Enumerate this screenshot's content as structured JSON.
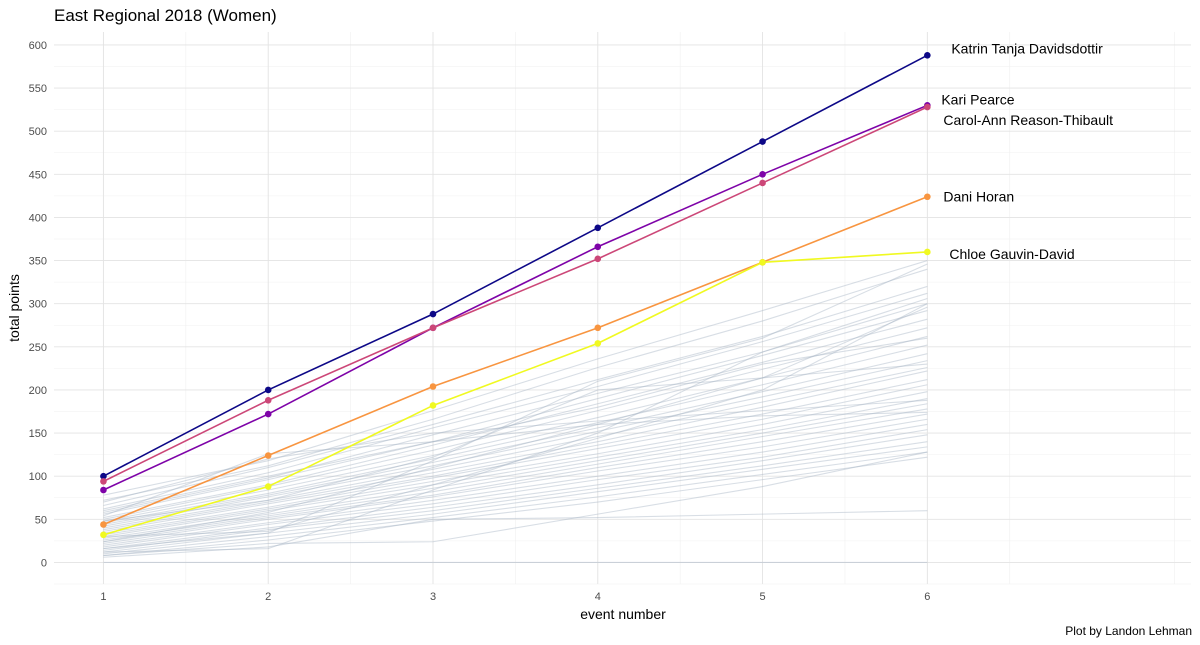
{
  "chart_data": {
    "type": "line",
    "title": "East Regional 2018 (Women)",
    "xlabel": "event number",
    "ylabel": "total points",
    "caption": "Plot by Landon Lehman",
    "x": [
      1,
      2,
      3,
      4,
      5,
      6
    ],
    "xlim": [
      0.7,
      7.6
    ],
    "ylim": [
      -25,
      615
    ],
    "yticks": [
      0,
      50,
      100,
      150,
      200,
      250,
      300,
      350,
      400,
      450,
      500,
      550,
      600
    ],
    "grid": true,
    "highlighted_series": [
      {
        "name": "Katrin Tanja Davidsdottir",
        "color": "#0d0887",
        "values": [
          100,
          200,
          288,
          388,
          488,
          588
        ]
      },
      {
        "name": "Kari Pearce",
        "color": "#7e03a8",
        "values": [
          84,
          172,
          272,
          366,
          450,
          530
        ]
      },
      {
        "name": "Carol-Ann Reason-Thibault",
        "color": "#cc4778",
        "values": [
          94,
          188,
          272,
          352,
          440,
          528
        ]
      },
      {
        "name": "Dani Horan",
        "color": "#f89540",
        "values": [
          44,
          124,
          204,
          272,
          348,
          424
        ]
      },
      {
        "name": "Chloe Gauvin-David",
        "color": "#f0f921",
        "values": [
          32,
          88,
          182,
          254,
          348,
          360
        ]
      }
    ],
    "background_series_color": "#a9b6c6",
    "background_series": [
      [
        78,
        118,
        176,
        236,
        292,
        350
      ],
      [
        72,
        112,
        166,
        226,
        280,
        340
      ],
      [
        66,
        110,
        160,
        212,
        262,
        320
      ],
      [
        62,
        104,
        156,
        204,
        256,
        312
      ],
      [
        58,
        98,
        148,
        196,
        244,
        300
      ],
      [
        56,
        96,
        140,
        190,
        240,
        292
      ],
      [
        52,
        90,
        136,
        184,
        232,
        282
      ],
      [
        50,
        88,
        130,
        176,
        224,
        272
      ],
      [
        48,
        84,
        124,
        168,
        214,
        262
      ],
      [
        46,
        80,
        120,
        162,
        206,
        252
      ],
      [
        44,
        78,
        116,
        156,
        198,
        242
      ],
      [
        42,
        76,
        112,
        152,
        192,
        234
      ],
      [
        40,
        72,
        108,
        146,
        186,
        226
      ],
      [
        38,
        70,
        104,
        140,
        180,
        222
      ],
      [
        36,
        68,
        100,
        136,
        172,
        212
      ],
      [
        34,
        64,
        98,
        132,
        166,
        206
      ],
      [
        32,
        62,
        94,
        126,
        160,
        198
      ],
      [
        30,
        60,
        90,
        122,
        154,
        190
      ],
      [
        28,
        56,
        86,
        118,
        150,
        184
      ],
      [
        26,
        54,
        82,
        114,
        146,
        178
      ],
      [
        24,
        52,
        78,
        110,
        140,
        172
      ],
      [
        22,
        50,
        76,
        106,
        134,
        166
      ],
      [
        20,
        46,
        72,
        100,
        128,
        160
      ],
      [
        18,
        44,
        68,
        96,
        122,
        154
      ],
      [
        16,
        40,
        64,
        90,
        118,
        148
      ],
      [
        14,
        38,
        60,
        86,
        112,
        140
      ],
      [
        12,
        34,
        56,
        82,
        108,
        134
      ],
      [
        10,
        30,
        52,
        76,
        102,
        128
      ],
      [
        8,
        26,
        48,
        70,
        96,
        122
      ],
      [
        8,
        22,
        24,
        56,
        88,
        128
      ],
      [
        6,
        18,
        50,
        52,
        56,
        60
      ],
      [
        0,
        0,
        0,
        0,
        0,
        0
      ],
      [
        70,
        120,
        150,
        164,
        176,
        188
      ],
      [
        54,
        126,
        140,
        160,
        170,
        174
      ],
      [
        48,
        72,
        122,
        200,
        214,
        230
      ],
      [
        30,
        36,
        90,
        144,
        200,
        300
      ],
      [
        12,
        16,
        84,
        150,
        244,
        306
      ],
      [
        60,
        100,
        140,
        180,
        230,
        260
      ],
      [
        24,
        58,
        110,
        160,
        214,
        296
      ],
      [
        16,
        34,
        118,
        210,
        260,
        346
      ]
    ]
  }
}
